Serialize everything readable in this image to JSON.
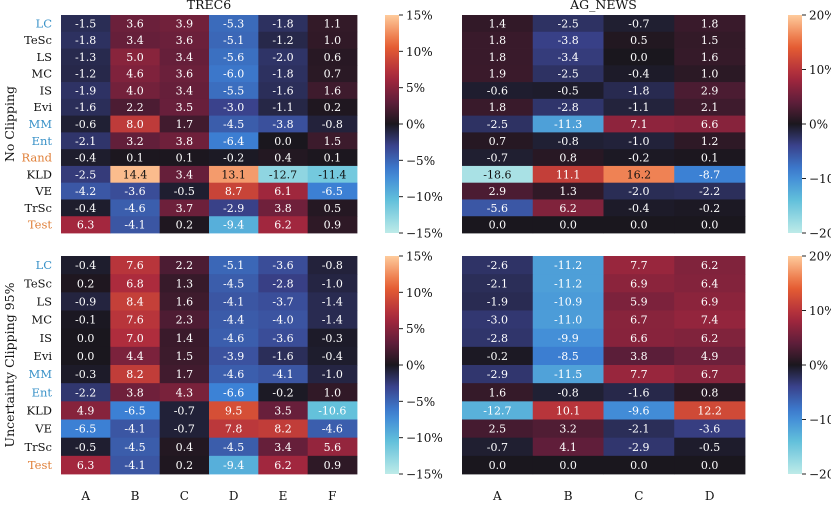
{
  "colors": {
    "row_label_default": "#111111",
    "highlight_blue": "#3a92c8",
    "highlight_orange": "#e0803a"
  },
  "chart_data": {
    "type": "heatmap",
    "row_group_titles": [
      "No Clipping",
      "Uncertainty Clipping 95%"
    ],
    "panels": [
      {
        "id": "trec6-no-clip",
        "title": "TREC6",
        "row_group": 0,
        "vmin": -15,
        "vmax": 15,
        "colorbar_ticks": [
          {
            "v": 15,
            "label": "15%"
          },
          {
            "v": 10,
            "label": "10%"
          },
          {
            "v": 5,
            "label": "5%"
          },
          {
            "v": 0,
            "label": "0%"
          },
          {
            "v": -5,
            "label": "−5%"
          },
          {
            "v": -10,
            "label": "−10%"
          },
          {
            "v": -15,
            "label": "−15%"
          }
        ],
        "columns": [
          "A",
          "B",
          "C",
          "D",
          "E",
          "F"
        ],
        "rows": [
          {
            "label": "LC",
            "color": "blue",
            "values": [
              -1.5,
              3.6,
              3.9,
              -5.3,
              -1.8,
              1.1
            ]
          },
          {
            "label": "TeSc",
            "color": "default",
            "values": [
              -1.8,
              3.4,
              3.6,
              -5.1,
              -1.2,
              1.0
            ]
          },
          {
            "label": "LS",
            "color": "default",
            "values": [
              -1.3,
              5.0,
              3.4,
              -5.6,
              -2.0,
              0.6
            ]
          },
          {
            "label": "MC",
            "color": "default",
            "values": [
              -1.2,
              4.6,
              3.6,
              -6.0,
              -1.8,
              0.7
            ]
          },
          {
            "label": "IS",
            "color": "default",
            "values": [
              -1.9,
              4.0,
              3.4,
              -5.5,
              -1.6,
              1.6
            ]
          },
          {
            "label": "Evi",
            "color": "default",
            "values": [
              -1.6,
              2.2,
              3.5,
              -3.0,
              -1.1,
              0.2
            ]
          },
          {
            "label": "MM",
            "color": "blue",
            "values": [
              -0.6,
              8.0,
              1.7,
              -4.5,
              -3.8,
              -0.8
            ]
          },
          {
            "label": "Ent",
            "color": "blue",
            "values": [
              -2.1,
              3.2,
              3.8,
              -6.4,
              0.0,
              1.5
            ]
          },
          {
            "label": "Rand",
            "color": "orange",
            "values": [
              -0.4,
              0.1,
              0.1,
              -0.2,
              0.4,
              0.1
            ]
          },
          {
            "label": "KLD",
            "color": "default",
            "values": [
              -2.5,
              14.4,
              3.4,
              13.1,
              -12.7,
              -11.4
            ]
          },
          {
            "label": "VE",
            "color": "default",
            "values": [
              -4.2,
              -3.6,
              -0.5,
              8.7,
              6.1,
              -6.5
            ]
          },
          {
            "label": "TrSc",
            "color": "default",
            "values": [
              -0.4,
              -4.6,
              3.7,
              -2.9,
              3.8,
              0.5
            ]
          },
          {
            "label": "Test",
            "color": "orange",
            "values": [
              6.3,
              -4.1,
              0.2,
              -9.4,
              6.2,
              0.9
            ]
          }
        ]
      },
      {
        "id": "agnews-no-clip",
        "title": "AG_NEWS",
        "row_group": 0,
        "vmin": -20,
        "vmax": 20,
        "colorbar_ticks": [
          {
            "v": 20,
            "label": "20%"
          },
          {
            "v": 10,
            "label": "10%"
          },
          {
            "v": 0,
            "label": "0%"
          },
          {
            "v": -10,
            "label": "−10%"
          },
          {
            "v": -20,
            "label": "−20%"
          }
        ],
        "columns": [
          "A",
          "B",
          "C",
          "D"
        ],
        "rows": [
          {
            "label": "LC",
            "values": [
              1.4,
              -2.5,
              -0.7,
              1.8
            ]
          },
          {
            "label": "TeSc",
            "values": [
              1.8,
              -3.8,
              0.5,
              1.5
            ]
          },
          {
            "label": "LS",
            "values": [
              1.8,
              -3.4,
              0.0,
              1.6
            ]
          },
          {
            "label": "MC",
            "values": [
              1.9,
              -2.5,
              -0.4,
              1.0
            ]
          },
          {
            "label": "IS",
            "values": [
              -0.6,
              -0.5,
              -1.8,
              2.9
            ]
          },
          {
            "label": "Evi",
            "values": [
              1.8,
              -2.8,
              -1.1,
              2.1
            ]
          },
          {
            "label": "MM",
            "values": [
              -2.5,
              -11.3,
              7.1,
              6.6
            ]
          },
          {
            "label": "Ent",
            "values": [
              0.7,
              -0.8,
              -1.0,
              1.2
            ]
          },
          {
            "label": "Rand",
            "values": [
              -0.7,
              0.8,
              -0.2,
              0.1
            ]
          },
          {
            "label": "KLD",
            "values": [
              -18.6,
              11.1,
              16.2,
              -8.7
            ]
          },
          {
            "label": "VE",
            "values": [
              2.9,
              1.3,
              -2.0,
              -2.2
            ]
          },
          {
            "label": "TrSc",
            "values": [
              -5.6,
              6.2,
              -0.4,
              -0.2
            ]
          },
          {
            "label": "Test",
            "values": [
              0.0,
              0.0,
              0.0,
              0.0
            ]
          }
        ]
      },
      {
        "id": "trec6-clip",
        "title": "",
        "row_group": 1,
        "vmin": -15,
        "vmax": 15,
        "colorbar_ticks": [
          {
            "v": 15,
            "label": "15%"
          },
          {
            "v": 10,
            "label": "10%"
          },
          {
            "v": 5,
            "label": "5%"
          },
          {
            "v": 0,
            "label": "0%"
          },
          {
            "v": -5,
            "label": "−5%"
          },
          {
            "v": -10,
            "label": "−10%"
          },
          {
            "v": -15,
            "label": "−15%"
          }
        ],
        "columns": [
          "A",
          "B",
          "C",
          "D",
          "E",
          "F"
        ],
        "rows": [
          {
            "label": "LC",
            "color": "blue",
            "values": [
              -0.4,
              7.6,
              2.2,
              -5.1,
              -3.6,
              -0.8
            ]
          },
          {
            "label": "TeSc",
            "color": "default",
            "values": [
              0.2,
              6.8,
              1.3,
              -4.5,
              -2.8,
              -1.0
            ]
          },
          {
            "label": "LS",
            "color": "default",
            "values": [
              -0.9,
              8.4,
              1.6,
              -4.1,
              -3.7,
              -1.4
            ]
          },
          {
            "label": "MC",
            "color": "default",
            "values": [
              -0.1,
              7.6,
              2.3,
              -4.4,
              -4.0,
              -1.4
            ]
          },
          {
            "label": "IS",
            "color": "default",
            "values": [
              0.0,
              7.0,
              1.4,
              -4.6,
              -3.6,
              -0.3
            ]
          },
          {
            "label": "Evi",
            "color": "default",
            "values": [
              0.0,
              4.4,
              1.5,
              -3.9,
              -1.6,
              -0.4
            ]
          },
          {
            "label": "MM",
            "color": "blue",
            "values": [
              -0.3,
              8.2,
              1.7,
              -4.6,
              -4.1,
              -1.0
            ]
          },
          {
            "label": "Ent",
            "color": "blue",
            "values": [
              -2.2,
              3.8,
              4.3,
              -6.6,
              -0.2,
              1.0
            ]
          },
          {
            "label": "KLD",
            "color": "default",
            "values": [
              4.9,
              -6.5,
              -0.7,
              9.5,
              3.5,
              -10.6
            ]
          },
          {
            "label": "VE",
            "color": "default",
            "values": [
              -6.5,
              -4.1,
              -0.7,
              7.8,
              8.2,
              -4.6
            ]
          },
          {
            "label": "TrSc",
            "color": "default",
            "values": [
              -0.5,
              -4.5,
              0.4,
              -4.5,
              3.4,
              5.6
            ]
          },
          {
            "label": "Test",
            "color": "orange",
            "values": [
              6.3,
              -4.1,
              0.2,
              -9.4,
              6.2,
              0.9
            ]
          }
        ]
      },
      {
        "id": "agnews-clip",
        "title": "",
        "row_group": 1,
        "vmin": -20,
        "vmax": 20,
        "colorbar_ticks": [
          {
            "v": 20,
            "label": "20%"
          },
          {
            "v": 10,
            "label": "10%"
          },
          {
            "v": 0,
            "label": "0%"
          },
          {
            "v": -10,
            "label": "−10%"
          },
          {
            "v": -20,
            "label": "−20%"
          }
        ],
        "columns": [
          "A",
          "B",
          "C",
          "D"
        ],
        "rows": [
          {
            "label": "LC",
            "values": [
              -2.6,
              -11.2,
              7.7,
              6.2
            ]
          },
          {
            "label": "TeSc",
            "values": [
              -2.1,
              -11.2,
              6.9,
              6.4
            ]
          },
          {
            "label": "LS",
            "values": [
              -1.9,
              -10.9,
              5.9,
              6.9
            ]
          },
          {
            "label": "MC",
            "values": [
              -3.0,
              -11.0,
              6.7,
              7.4
            ]
          },
          {
            "label": "IS",
            "values": [
              -2.8,
              -9.9,
              6.6,
              6.2
            ]
          },
          {
            "label": "Evi",
            "values": [
              -0.2,
              -8.5,
              3.8,
              4.9
            ]
          },
          {
            "label": "MM",
            "values": [
              -2.9,
              -11.5,
              7.7,
              6.7
            ]
          },
          {
            "label": "Ent",
            "values": [
              1.6,
              -0.8,
              -1.6,
              0.8
            ]
          },
          {
            "label": "KLD",
            "values": [
              -12.7,
              10.1,
              -9.6,
              12.2
            ]
          },
          {
            "label": "VE",
            "values": [
              2.5,
              3.2,
              -2.1,
              -3.6
            ]
          },
          {
            "label": "TrSc",
            "values": [
              -0.7,
              4.1,
              -2.9,
              -0.5
            ]
          },
          {
            "label": "Test",
            "values": [
              0.0,
              0.0,
              0.0,
              0.0
            ]
          }
        ]
      }
    ]
  }
}
